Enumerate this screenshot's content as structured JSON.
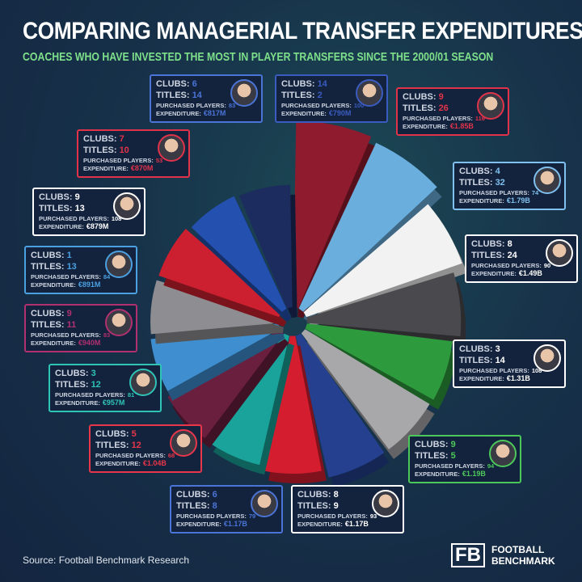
{
  "header": {
    "title": "COMPARING MANAGERIAL TRANSFER EXPENDITURES",
    "subtitle": "COACHES WHO HAVE INVESTED THE MOST IN PLAYER TRANSFERS SINCE THE 2000/01 SEASON"
  },
  "labels": {
    "clubs": "CLUBS:",
    "titles": "TITLES:",
    "purchased": "PURCHASED PLAYERS:",
    "expenditure": "EXPENDITURE:"
  },
  "chart_data": {
    "type": "pie",
    "title": "COMPARING MANAGERIAL TRANSFER EXPENDITURES",
    "unit": "EUR billions",
    "entries": [
      {
        "clubs": "9",
        "titles": "26",
        "purchased": "116",
        "expenditure": "€1.85B",
        "value": 1.85,
        "color": "#8e1b2e",
        "accent": "#e0334a"
      },
      {
        "clubs": "4",
        "titles": "32",
        "purchased": "74",
        "expenditure": "€1.79B",
        "value": 1.79,
        "color": "#6aaede",
        "accent": "#7fc0ee"
      },
      {
        "clubs": "8",
        "titles": "24",
        "purchased": "90",
        "expenditure": "€1.49B",
        "value": 1.49,
        "color": "#f2f2f2",
        "accent": "#ffffff"
      },
      {
        "clubs": "3",
        "titles": "14",
        "purchased": "108",
        "expenditure": "€1.31B",
        "value": 1.31,
        "color": "#4a4a4e",
        "accent": "#ffffff"
      },
      {
        "clubs": "9",
        "titles": "5",
        "purchased": "94",
        "expenditure": "€1.19B",
        "value": 1.19,
        "color": "#2e9a3e",
        "accent": "#4cc85a"
      },
      {
        "clubs": "8",
        "titles": "9",
        "purchased": "93",
        "expenditure": "€1.17B",
        "value": 1.17,
        "color": "#a8a8aa",
        "accent": "#ffffff"
      },
      {
        "clubs": "6",
        "titles": "8",
        "purchased": "79",
        "expenditure": "€1.17B",
        "value": 1.17,
        "color": "#24408e",
        "accent": "#4a74d6"
      },
      {
        "clubs": "5",
        "titles": "12",
        "purchased": "68",
        "expenditure": "€1.04B",
        "value": 1.04,
        "color": "#d41e30",
        "accent": "#e8364a"
      },
      {
        "clubs": "3",
        "titles": "12",
        "purchased": "81",
        "expenditure": "€957M",
        "value": 0.957,
        "color": "#1aa39a",
        "accent": "#2ec4b6"
      },
      {
        "clubs": "9",
        "titles": "11",
        "purchased": "83",
        "expenditure": "€940M",
        "value": 0.94,
        "color": "#6b1f3f",
        "accent": "#b03070"
      },
      {
        "clubs": "1",
        "titles": "13",
        "purchased": "84",
        "expenditure": "€891M",
        "value": 0.891,
        "color": "#3f8fd0",
        "accent": "#4aa0e0"
      },
      {
        "clubs": "9",
        "titles": "13",
        "purchased": "108",
        "expenditure": "€879M",
        "value": 0.879,
        "color": "#8e8e92",
        "accent": "#ffffff"
      },
      {
        "clubs": "7",
        "titles": "10",
        "purchased": "53",
        "expenditure": "€870M",
        "value": 0.87,
        "color": "#cc2030",
        "accent": "#e0334a"
      },
      {
        "clubs": "6",
        "titles": "14",
        "purchased": "83",
        "expenditure": "€817M",
        "value": 0.817,
        "color": "#2450b0",
        "accent": "#4a74d6"
      },
      {
        "clubs": "14",
        "titles": "2",
        "purchased": "100",
        "expenditure": "€790M",
        "value": 0.79,
        "color": "#1c2c5e",
        "accent": "#3a5cc0"
      }
    ]
  },
  "footer": {
    "source": "Source: Football Benchmark Research",
    "logo_mark": "FB",
    "logo_line1": "FOOTBALL",
    "logo_line2": "BENCHMARK"
  }
}
